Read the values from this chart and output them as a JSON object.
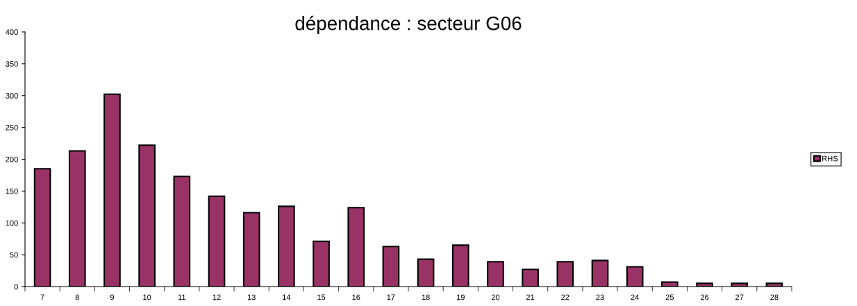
{
  "chart_data": {
    "type": "bar",
    "title": "dépendance : secteur G06",
    "categories": [
      "7",
      "8",
      "9",
      "10",
      "11",
      "12",
      "13",
      "14",
      "15",
      "16",
      "17",
      "18",
      "19",
      "20",
      "21",
      "22",
      "23",
      "24",
      "25",
      "26",
      "27",
      "28"
    ],
    "series": [
      {
        "name": "RHS",
        "color": "#993366",
        "values": [
          185,
          213,
          302,
          222,
          173,
          142,
          116,
          126,
          71,
          124,
          63,
          43,
          65,
          39,
          27,
          39,
          41,
          31,
          7,
          5,
          5,
          5
        ]
      }
    ],
    "ylim": [
      0,
      400
    ],
    "yticks": [
      0,
      50,
      100,
      150,
      200,
      250,
      300,
      350,
      400
    ],
    "grid": false,
    "legend": "right"
  }
}
